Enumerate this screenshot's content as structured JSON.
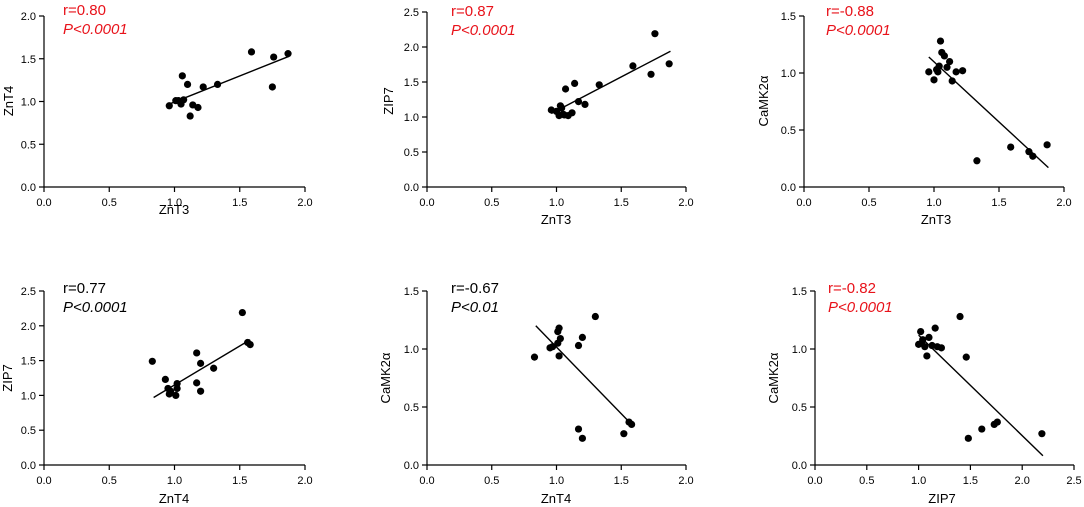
{
  "chart_data": [
    {
      "type": "scatter",
      "id": "p1",
      "xlabel": "ZnT3",
      "ylabel": "ZnT4",
      "xlim": [
        0,
        2
      ],
      "ylim": [
        0,
        2
      ],
      "xticks": [
        "0.0",
        "0.5",
        "1.0",
        "1.5",
        "2.0"
      ],
      "yticks": [
        "0.0",
        "0.5",
        "1.0",
        "1.5",
        "2.0"
      ],
      "r_text": "r=0.80",
      "p_text": "P<0.0001",
      "annotation_color": "#e8121a",
      "x": [
        0.96,
        1.01,
        1.03,
        1.05,
        1.07,
        1.12,
        1.14,
        1.18,
        1.06,
        1.1,
        1.22,
        1.33,
        1.59,
        1.75,
        1.76,
        1.87
      ],
      "y": [
        0.95,
        1.01,
        1.01,
        0.97,
        1.02,
        0.83,
        0.96,
        0.93,
        1.3,
        1.2,
        1.17,
        1.2,
        1.58,
        1.17,
        1.52,
        1.56
      ],
      "fit": [
        [
          0.96,
          0.97
        ],
        [
          1.88,
          1.53
        ]
      ]
    },
    {
      "type": "scatter",
      "id": "p2",
      "xlabel": "ZnT3",
      "ylabel": "ZIP7",
      "xlim": [
        0,
        2
      ],
      "ylim": [
        0,
        2.5
      ],
      "xticks": [
        "0.0",
        "0.5",
        "1.0",
        "1.5",
        "2.0"
      ],
      "yticks": [
        "0.0",
        "0.5",
        "1.0",
        "1.5",
        "2.0",
        "2.5"
      ],
      "r_text": "r=0.87",
      "p_text": "P<0.0001",
      "annotation_color": "#e8121a",
      "x": [
        0.96,
        1.0,
        1.02,
        1.03,
        1.05,
        1.04,
        1.07,
        1.09,
        1.12,
        1.14,
        1.17,
        1.22,
        1.06,
        1.33,
        1.59,
        1.73,
        1.76,
        1.87
      ],
      "y": [
        1.1,
        1.08,
        1.02,
        1.16,
        1.04,
        1.13,
        1.4,
        1.02,
        1.06,
        1.48,
        1.22,
        1.18,
        1.03,
        1.46,
        1.73,
        1.61,
        2.19,
        1.76
      ],
      "fit": [
        [
          0.96,
          1.05
        ],
        [
          1.88,
          1.94
        ]
      ]
    },
    {
      "type": "scatter",
      "id": "p3",
      "xlabel": "ZnT3",
      "ylabel": "CaMK2α",
      "xlim": [
        0,
        2
      ],
      "ylim": [
        0,
        1.5
      ],
      "xticks": [
        "0.0",
        "0.5",
        "1.0",
        "1.5",
        "2.0"
      ],
      "yticks": [
        "0.0",
        "0.5",
        "1.0",
        "1.5"
      ],
      "r_text": "r=-0.88",
      "p_text": "P<0.0001",
      "annotation_color": "#e8121a",
      "x": [
        0.96,
        1.0,
        1.02,
        1.04,
        1.05,
        1.06,
        1.08,
        1.1,
        1.12,
        1.14,
        1.17,
        1.22,
        1.03,
        1.33,
        1.59,
        1.73,
        1.76,
        1.87
      ],
      "y": [
        1.01,
        0.94,
        1.03,
        1.06,
        1.28,
        1.18,
        1.15,
        1.05,
        1.1,
        0.93,
        1.01,
        1.02,
        1.01,
        0.23,
        0.35,
        0.31,
        0.27,
        0.37
      ],
      "fit": [
        [
          0.96,
          1.14
        ],
        [
          1.88,
          0.17
        ]
      ]
    },
    {
      "type": "scatter",
      "id": "p4",
      "xlabel": "ZnT4",
      "ylabel": "ZIP7",
      "xlim": [
        0,
        2
      ],
      "ylim": [
        0,
        2.5
      ],
      "xticks": [
        "0.0",
        "0.5",
        "1.0",
        "1.5",
        "2.0"
      ],
      "yticks": [
        "0.0",
        "0.5",
        "1.0",
        "1.5",
        "2.0",
        "2.5"
      ],
      "r_text": "r=0.77",
      "p_text": "P<0.0001",
      "annotation_color": "#000000",
      "x": [
        0.83,
        0.93,
        0.95,
        0.96,
        0.97,
        1.01,
        1.02,
        1.02,
        1.17,
        1.17,
        1.2,
        1.2,
        1.3,
        1.52,
        1.56,
        1.58
      ],
      "y": [
        1.49,
        1.23,
        1.1,
        1.02,
        1.06,
        1.0,
        1.1,
        1.17,
        1.61,
        1.18,
        1.06,
        1.46,
        1.39,
        2.19,
        1.76,
        1.73
      ],
      "fit": [
        [
          0.84,
          0.97
        ],
        [
          1.58,
          1.8
        ]
      ]
    },
    {
      "type": "scatter",
      "id": "p5",
      "xlabel": "ZnT4",
      "ylabel": "CaMK2α",
      "xlim": [
        0,
        2
      ],
      "ylim": [
        0,
        1.5
      ],
      "xticks": [
        "0.0",
        "0.5",
        "1.0",
        "1.5",
        "2.0"
      ],
      "yticks": [
        "0.0",
        "0.5",
        "1.0",
        "1.5"
      ],
      "r_text": "r=-0.67",
      "p_text": "P<0.01",
      "annotation_color": "#000000",
      "x": [
        0.83,
        0.95,
        0.97,
        1.01,
        1.01,
        1.02,
        1.02,
        1.03,
        1.17,
        1.17,
        1.2,
        1.2,
        1.3,
        1.52,
        1.56,
        1.58
      ],
      "y": [
        0.93,
        1.01,
        1.02,
        1.15,
        1.05,
        0.94,
        1.18,
        1.09,
        1.03,
        0.31,
        0.23,
        1.1,
        1.28,
        0.27,
        0.37,
        0.35
      ],
      "fit": [
        [
          0.84,
          1.2
        ],
        [
          1.58,
          0.35
        ]
      ]
    },
    {
      "type": "scatter",
      "id": "p6",
      "xlabel": "ZIP7",
      "ylabel": "CaMK2α",
      "xlim": [
        0,
        2.5
      ],
      "ylim": [
        0,
        1.5
      ],
      "xticks": [
        "0.0",
        "0.5",
        "1.0",
        "1.5",
        "2.0",
        "2.5"
      ],
      "yticks": [
        "0.0",
        "0.5",
        "1.0",
        "1.5"
      ],
      "r_text": "r=-0.82",
      "p_text": "P<0.0001",
      "annotation_color": "#e8121a",
      "x": [
        1.0,
        1.02,
        1.04,
        1.06,
        1.08,
        1.1,
        1.13,
        1.16,
        1.18,
        1.22,
        1.03,
        1.4,
        1.46,
        1.48,
        1.61,
        1.73,
        1.76,
        2.19
      ],
      "y": [
        1.04,
        1.15,
        1.08,
        1.02,
        0.94,
        1.1,
        1.03,
        1.18,
        1.02,
        1.01,
        1.05,
        1.28,
        0.93,
        0.23,
        0.31,
        0.35,
        0.37,
        0.27
      ],
      "fit": [
        [
          1.0,
          1.12
        ],
        [
          2.2,
          0.08
        ]
      ]
    }
  ]
}
